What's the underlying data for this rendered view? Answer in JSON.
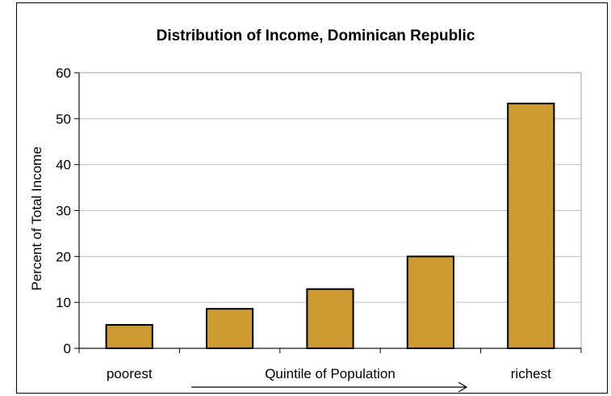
{
  "chart_data": {
    "type": "bar",
    "title": "Distribution of Income, Dominican Republic",
    "ylabel": "Percent of Total Income",
    "xlabel": "Quintile of Population",
    "categories": [
      "poorest",
      "",
      "",
      "",
      "richest"
    ],
    "values": [
      5.1,
      8.6,
      12.9,
      20.0,
      53.3
    ],
    "ylim": [
      0,
      60
    ],
    "yticks": [
      "0",
      "10",
      "20",
      "30",
      "40",
      "50",
      "60"
    ],
    "grid": true,
    "bar_color": "#CC9933",
    "grid_color": "#C0C0C0",
    "plot_border_color": "#C0C0C0",
    "x_arrow": "right"
  }
}
